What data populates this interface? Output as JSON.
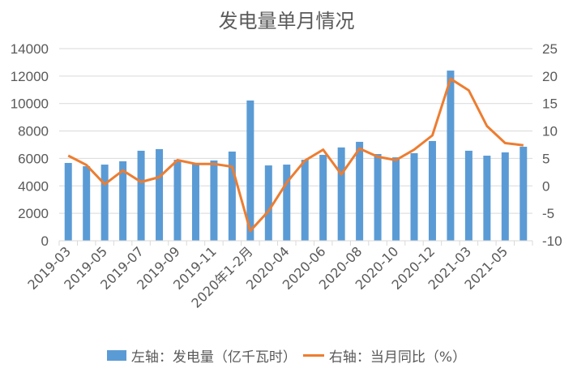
{
  "chart_data": {
    "type": "bar+line",
    "title": "发电量单月情况",
    "categories": [
      "2019-03",
      "2019-04",
      "2019-05",
      "2019-06",
      "2019-07",
      "2019-08",
      "2019-09",
      "2019-10",
      "2019-11",
      "2019-12",
      "2020年1-2月",
      "2020-03",
      "2020-04",
      "2020-05",
      "2020-06",
      "2020-07",
      "2020-08",
      "2020-09",
      "2020-10",
      "2020-11",
      "2020-12",
      "2021年1-2月",
      "2021-03",
      "2021-04",
      "2021-05",
      "2021-06"
    ],
    "x_tick_labels": [
      "2019-03",
      "2019-05",
      "2019-07",
      "2019-09",
      "2019-11",
      "2020年1-2月",
      "2020-04",
      "2020-06",
      "2020-08",
      "2020-10",
      "2020-12",
      "2021-03",
      "2021-05"
    ],
    "series": [
      {
        "name": "左轴：发电量（亿千瓦时）",
        "type": "bar",
        "axis": "left",
        "color": "#5B9BD5",
        "values": [
          5670,
          5430,
          5550,
          5790,
          6560,
          6680,
          5900,
          5610,
          5850,
          6500,
          10220,
          5490,
          5550,
          5900,
          6260,
          6800,
          7210,
          6320,
          6080,
          6380,
          7270,
          12400,
          6560,
          6200,
          6440,
          6850
        ]
      },
      {
        "name": "右轴：当月同比（%）",
        "type": "line",
        "axis": "right",
        "color": "#ED7D31",
        "values": [
          5.5,
          3.8,
          0.3,
          2.8,
          0.7,
          1.6,
          4.7,
          4.0,
          4.0,
          3.5,
          -8.2,
          -4.6,
          0.6,
          4.6,
          6.6,
          2.1,
          6.8,
          5.3,
          4.7,
          6.6,
          9.2,
          19.5,
          17.4,
          10.9,
          7.8,
          7.4
        ]
      }
    ],
    "left_axis": {
      "min": 0,
      "max": 14000,
      "step": 2000,
      "ticks": [
        "0",
        "2000",
        "4000",
        "6000",
        "8000",
        "10000",
        "12000",
        "14000"
      ]
    },
    "right_axis": {
      "min": -10,
      "max": 25,
      "step": 5,
      "ticks": [
        "-10",
        "-5",
        "0",
        "5",
        "10",
        "15",
        "20",
        "25"
      ]
    },
    "grid": true,
    "legend_position": "bottom"
  },
  "legend": {
    "bar_label": "左轴：发电量（亿千瓦时）",
    "line_label": "右轴：当月同比（%）"
  },
  "colors": {
    "bar": "#5B9BD5",
    "line": "#ED7D31",
    "grid": "#D9D9D9",
    "text": "#595959"
  }
}
